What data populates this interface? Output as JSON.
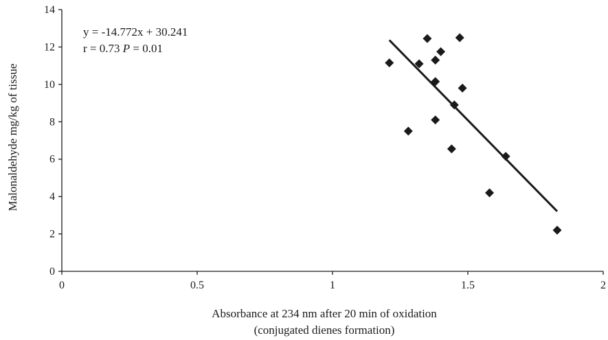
{
  "chart_data": {
    "type": "scatter",
    "xlabel": "Absorbance at 234 nm after 20 min of oxidation",
    "xlabel_line2": "(conjugated dienes formation)",
    "ylabel": "Malonaldehyde mg/kg of tissue",
    "xlim": [
      0,
      2
    ],
    "ylim": [
      0,
      14
    ],
    "x_ticks": [
      0,
      0.5,
      1,
      1.5,
      2
    ],
    "x_tick_labels": [
      "0",
      "0.5",
      "1",
      "1.5",
      "2"
    ],
    "y_ticks": [
      0,
      2,
      4,
      6,
      8,
      10,
      12,
      14
    ],
    "y_tick_labels": [
      "0",
      "2",
      "4",
      "6",
      "8",
      "10",
      "12",
      "14"
    ],
    "grid": false,
    "marker": "diamond",
    "marker_color": "#1a1a1a",
    "points": [
      {
        "x": 1.21,
        "y": 11.15
      },
      {
        "x": 1.28,
        "y": 7.5
      },
      {
        "x": 1.32,
        "y": 11.1
      },
      {
        "x": 1.35,
        "y": 12.45
      },
      {
        "x": 1.38,
        "y": 11.3
      },
      {
        "x": 1.38,
        "y": 10.15
      },
      {
        "x": 1.38,
        "y": 8.1
      },
      {
        "x": 1.4,
        "y": 11.75
      },
      {
        "x": 1.44,
        "y": 6.55
      },
      {
        "x": 1.45,
        "y": 8.9
      },
      {
        "x": 1.47,
        "y": 12.5
      },
      {
        "x": 1.48,
        "y": 9.8
      },
      {
        "x": 1.58,
        "y": 4.2
      },
      {
        "x": 1.64,
        "y": 6.15
      },
      {
        "x": 1.83,
        "y": 2.2
      }
    ],
    "trendline": {
      "slope": -14.772,
      "intercept": 30.241,
      "x_range": [
        1.21,
        1.83
      ]
    },
    "annotations": {
      "equation": "y = -14.772x + 30.241",
      "stats_prefix": "r = 0.73 ",
      "stats_p": "P",
      "stats_suffix": " = 0.01"
    }
  }
}
